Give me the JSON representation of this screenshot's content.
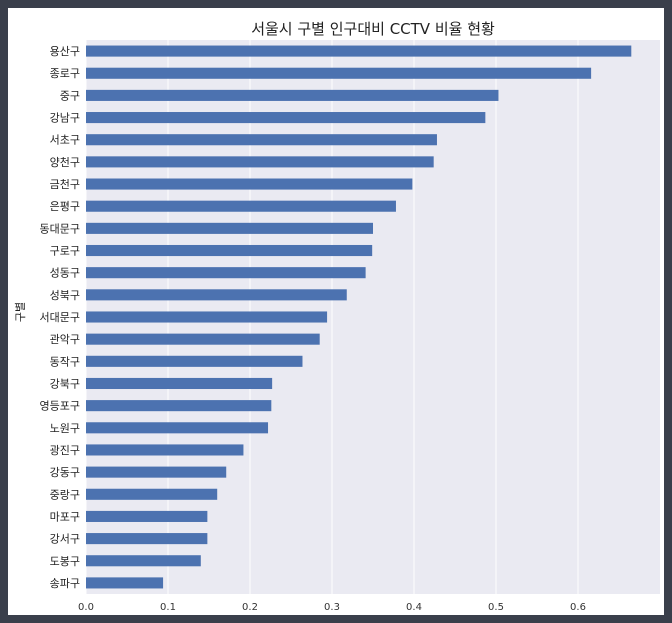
{
  "chart_data": {
    "type": "bar",
    "orientation": "horizontal",
    "title": "서울시 구별 인구대비 CCTV 비율 현황",
    "xlabel": "",
    "ylabel": "구별",
    "xlim": [
      0,
      0.7
    ],
    "xticks": [
      "0.0",
      "0.1",
      "0.2",
      "0.3",
      "0.4",
      "0.5",
      "0.6"
    ],
    "grid": true,
    "bar_color": "#4c72b0",
    "plot_background": "#eaeaf2",
    "categories": [
      "용산구",
      "종로구",
      "중구",
      "강남구",
      "서초구",
      "양천구",
      "금천구",
      "은평구",
      "동대문구",
      "구로구",
      "성동구",
      "성북구",
      "서대문구",
      "관악구",
      "동작구",
      "강북구",
      "영등포구",
      "노원구",
      "광진구",
      "강동구",
      "중랑구",
      "마포구",
      "강서구",
      "도봉구",
      "송파구"
    ],
    "values": [
      0.665,
      0.616,
      0.503,
      0.487,
      0.428,
      0.424,
      0.398,
      0.378,
      0.35,
      0.349,
      0.341,
      0.318,
      0.294,
      0.285,
      0.264,
      0.227,
      0.226,
      0.222,
      0.192,
      0.171,
      0.16,
      0.148,
      0.148,
      0.14,
      0.094
    ]
  }
}
